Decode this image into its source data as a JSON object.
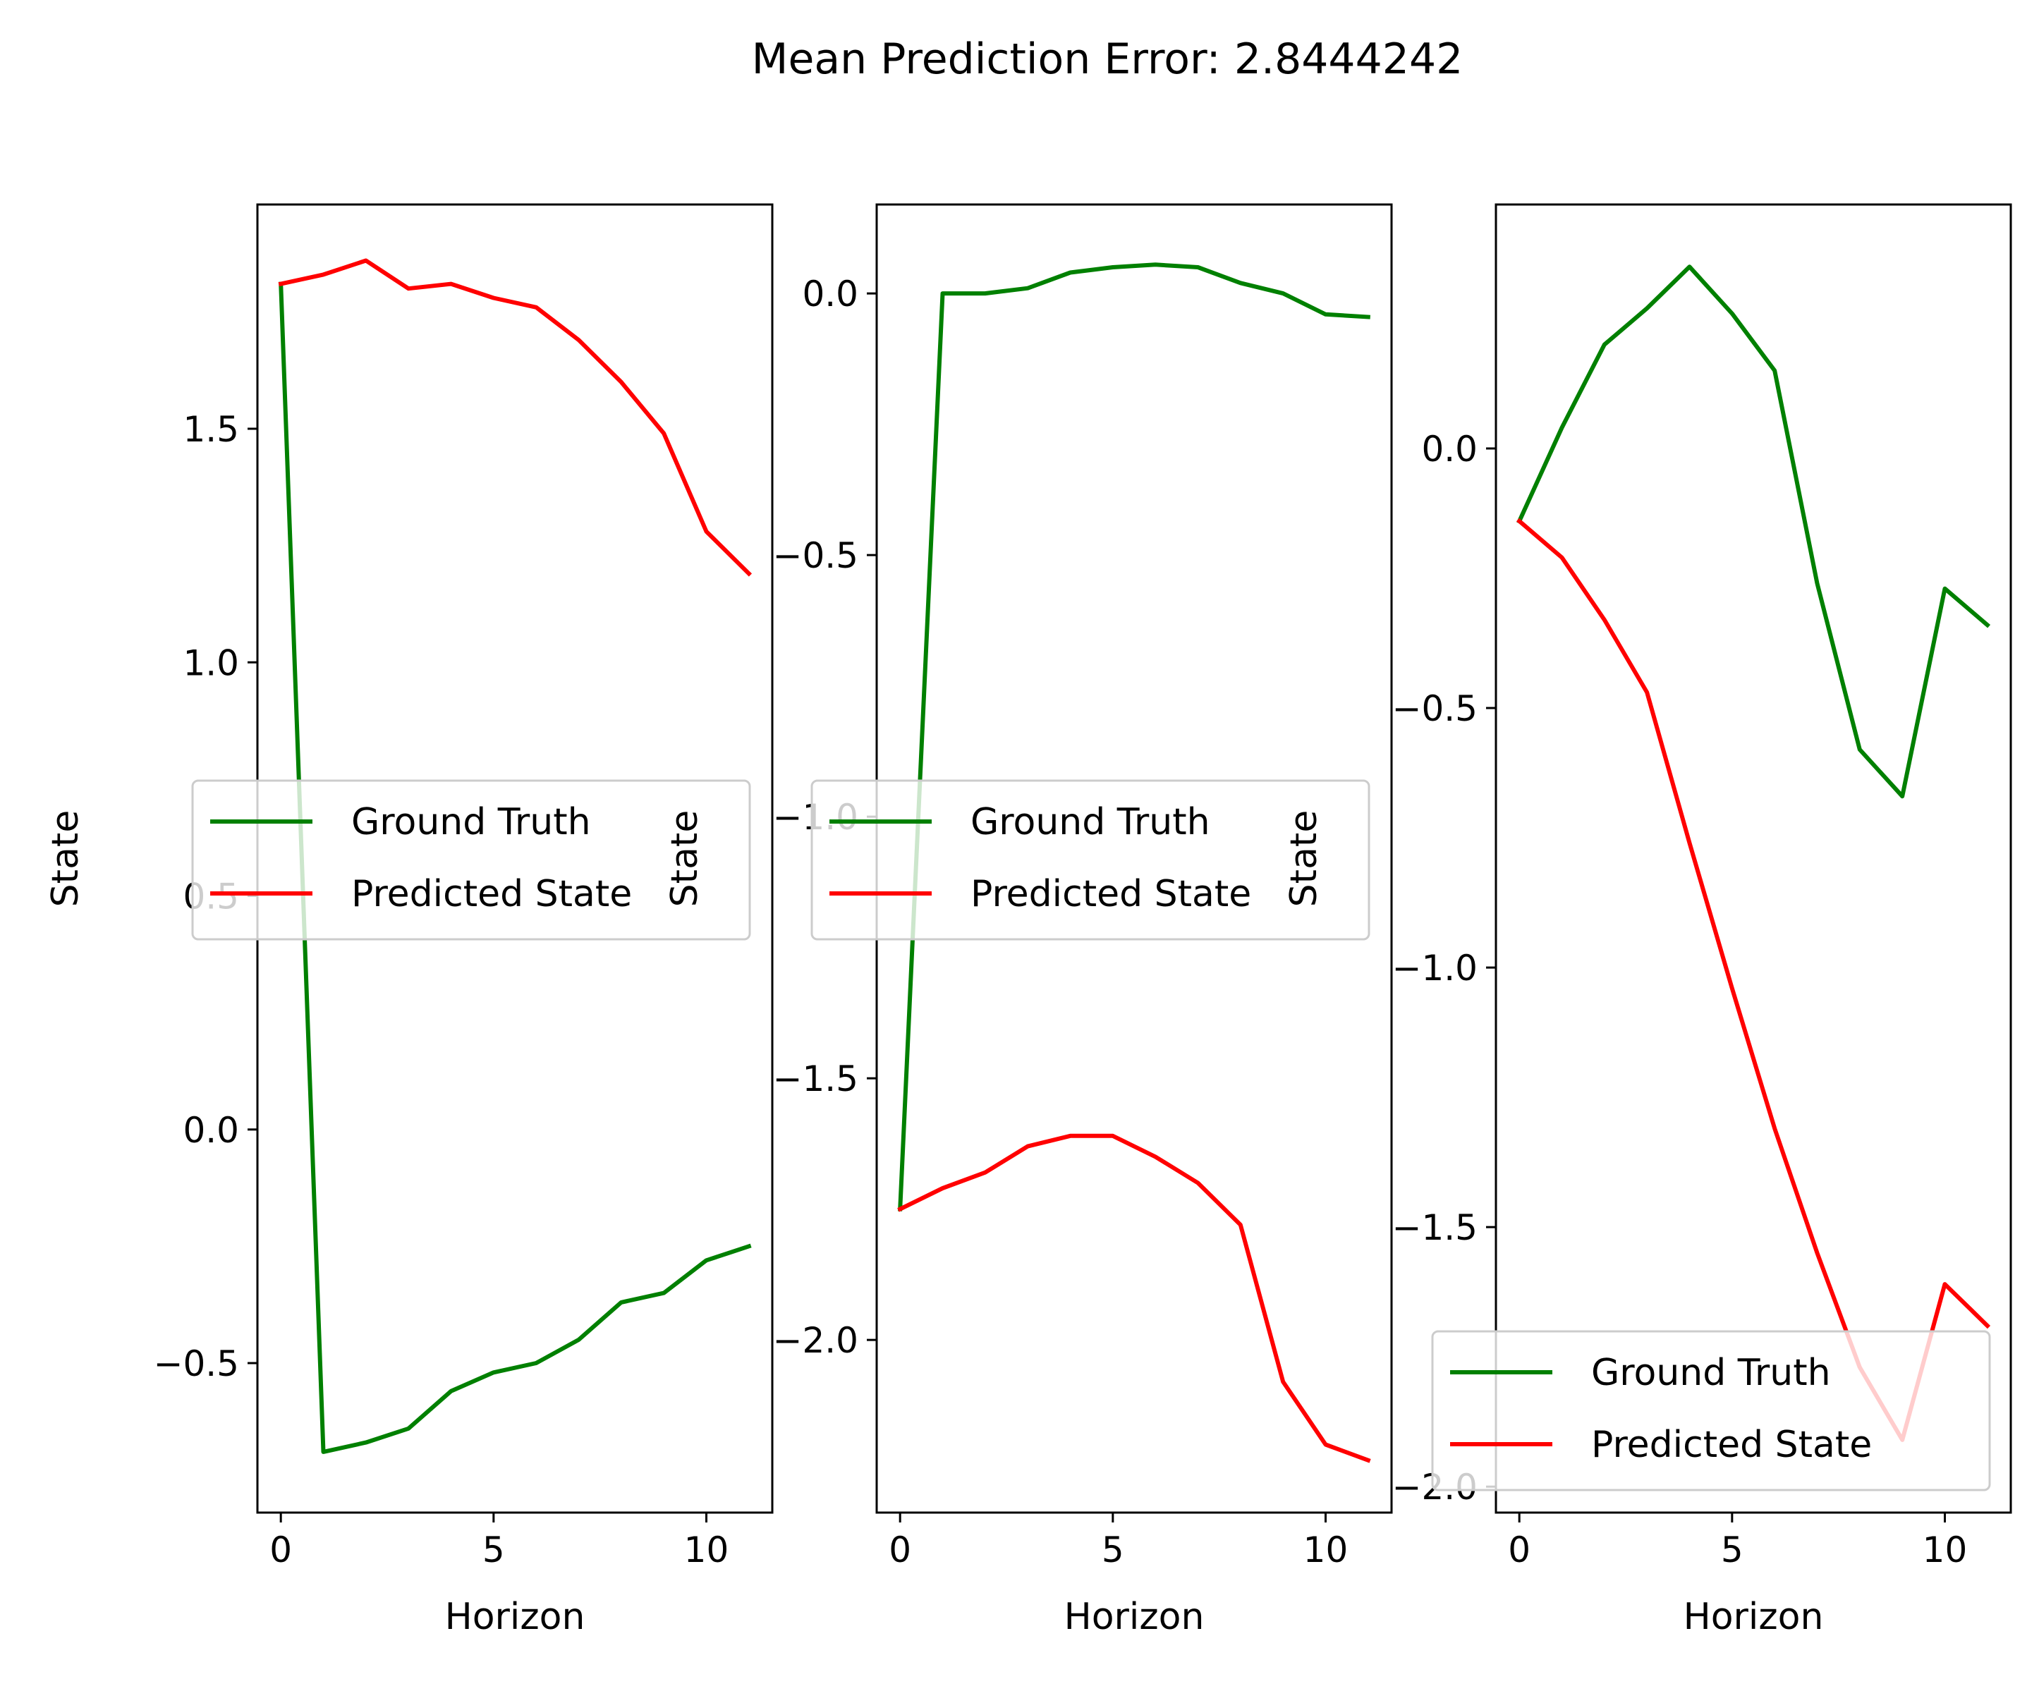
{
  "figure": {
    "title": "Mean Prediction Error: 2.8444242"
  },
  "colors": {
    "ground_truth": "#008000",
    "predicted": "#ff0000",
    "axes": "#000000",
    "background": "#ffffff"
  },
  "chart_data": [
    {
      "type": "line",
      "title": "",
      "xlabel": "Horizon",
      "ylabel": "State",
      "xlim": [
        -0.55,
        11.55
      ],
      "ylim": [
        -0.82,
        1.98
      ],
      "xticks": [
        0,
        5,
        10
      ],
      "xtick_labels": [
        "0",
        "5",
        "10"
      ],
      "yticks": [
        -0.5,
        0.0,
        0.5,
        1.0,
        1.5
      ],
      "ytick_labels": [
        "−0.5",
        "0.0",
        "0.5",
        "1.0",
        "1.5"
      ],
      "grid": false,
      "legend_position": "center",
      "x": [
        0,
        1,
        2,
        3,
        4,
        5,
        6,
        7,
        8,
        9,
        10,
        11
      ],
      "series": [
        {
          "name": "Ground Truth",
          "color": "#008000",
          "values": [
            1.81,
            -0.69,
            -0.67,
            -0.64,
            -0.56,
            -0.52,
            -0.5,
            -0.45,
            -0.37,
            -0.35,
            -0.28,
            -0.25
          ]
        },
        {
          "name": "Predicted State",
          "color": "#ff0000",
          "values": [
            1.81,
            1.83,
            1.86,
            1.8,
            1.81,
            1.78,
            1.76,
            1.69,
            1.6,
            1.49,
            1.28,
            1.19
          ]
        }
      ]
    },
    {
      "type": "line",
      "title": "",
      "xlabel": "Horizon",
      "ylabel": "State",
      "xlim": [
        -0.55,
        11.55
      ],
      "ylim": [
        -2.33,
        0.17
      ],
      "xticks": [
        0,
        5,
        10
      ],
      "xtick_labels": [
        "0",
        "5",
        "10"
      ],
      "yticks": [
        -2.0,
        -1.5,
        -1.0,
        -0.5,
        0.0
      ],
      "ytick_labels": [
        "−2.0",
        "−1.5",
        "−1.0",
        "−0.5",
        "0.0"
      ],
      "grid": false,
      "legend_position": "center",
      "x": [
        0,
        1,
        2,
        3,
        4,
        5,
        6,
        7,
        8,
        9,
        10,
        11
      ],
      "series": [
        {
          "name": "Ground Truth",
          "color": "#008000",
          "values": [
            -1.75,
            0.0,
            0.0,
            0.01,
            0.04,
            0.05,
            0.055,
            0.05,
            0.02,
            0.0,
            -0.04,
            -0.045
          ]
        },
        {
          "name": "Predicted State",
          "color": "#ff0000",
          "values": [
            -1.75,
            -1.71,
            -1.68,
            -1.63,
            -1.61,
            -1.61,
            -1.65,
            -1.7,
            -1.78,
            -2.08,
            -2.2,
            -2.23
          ]
        }
      ]
    },
    {
      "type": "line",
      "title": "",
      "xlabel": "Horizon",
      "ylabel": "State",
      "xlim": [
        -0.55,
        11.55
      ],
      "ylim": [
        -2.05,
        0.47
      ],
      "xticks": [
        0,
        5,
        10
      ],
      "xtick_labels": [
        "0",
        "5",
        "10"
      ],
      "yticks": [
        -2.0,
        -1.5,
        -1.0,
        -0.5,
        0.0
      ],
      "ytick_labels": [
        "−2.0",
        "−1.5",
        "−1.0",
        "−0.5",
        "0.0"
      ],
      "grid": false,
      "legend_position": "lower right",
      "x": [
        0,
        1,
        2,
        3,
        4,
        5,
        6,
        7,
        8,
        9,
        10,
        11
      ],
      "series": [
        {
          "name": "Ground Truth",
          "color": "#008000",
          "values": [
            -0.14,
            0.04,
            0.2,
            0.27,
            0.35,
            0.26,
            0.15,
            -0.26,
            -0.58,
            -0.67,
            -0.27,
            -0.34
          ]
        },
        {
          "name": "Predicted State",
          "color": "#ff0000",
          "values": [
            -0.14,
            -0.21,
            -0.33,
            -0.47,
            -0.76,
            -1.04,
            -1.31,
            -1.55,
            -1.77,
            -1.91,
            -1.61,
            -1.69
          ]
        }
      ]
    }
  ]
}
